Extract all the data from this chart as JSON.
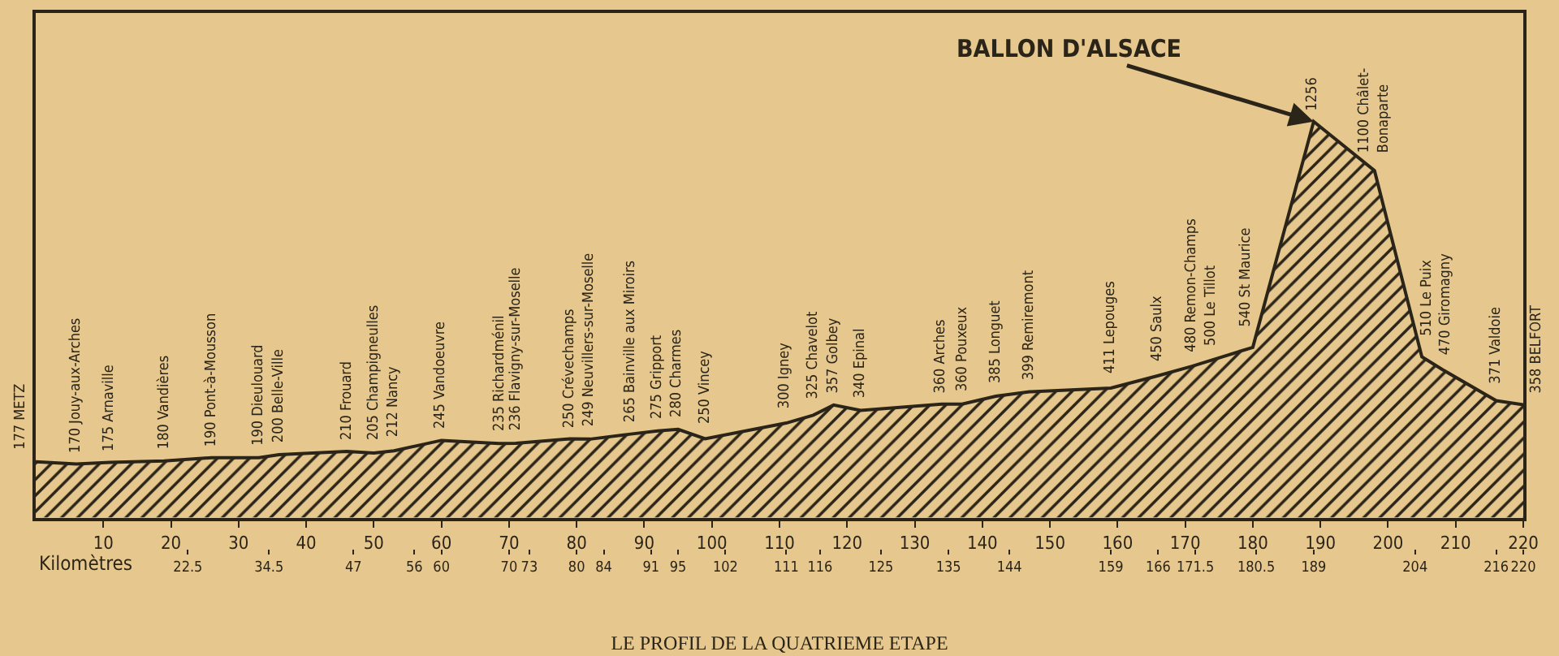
{
  "chart_data": {
    "type": "area",
    "title": "LE PROFIL DE LA QUATRIEME ETAPE",
    "x2label": "Kilomètres",
    "color": "#2b2418",
    "x": [
      0,
      6,
      11,
      19,
      26,
      33,
      36,
      46,
      50,
      53,
      60,
      68.5,
      71,
      79,
      82,
      88,
      92,
      95,
      99,
      111,
      115,
      118,
      122,
      134,
      137,
      142,
      147,
      159,
      166,
      171,
      174,
      180,
      189,
      198,
      205,
      208,
      216,
      220
    ],
    "values": [
      177,
      170,
      175,
      180,
      190,
      190,
      200,
      210,
      205,
      212,
      245,
      235,
      236,
      250,
      249,
      265,
      275,
      280,
      250,
      300,
      325,
      357,
      340,
      360,
      360,
      385,
      399,
      411,
      450,
      480,
      500,
      540,
      1256,
      1100,
      510,
      470,
      371,
      358
    ],
    "value_labels": [
      "177 METZ",
      "170 Jouy-aux-Arches",
      "175 Arnaville",
      "180 Vandières",
      "190 Pont-à-Mousson",
      "190 Dieulouard",
      "200 Belle-Ville",
      "210 Frouard",
      "205 Champigneulles",
      "212 Nancy",
      "245 Vandoeuvre",
      "235 Richardménil",
      "236 Flavigny-sur-Moselle",
      "250 Crévechamps",
      "249 Neuvillers-sur-Moselle",
      "265 Bainville aux Miroirs",
      "275 Gripport",
      "280 Charmes",
      "250 Vincey",
      "300 Igney",
      "325 Chavelot",
      "357 Golbey",
      "340 Epinal",
      "360 Arches",
      "360 Pouxeux",
      "385 Longuet",
      "399 Remiremont",
      "411 Lepouges",
      "450 Saulx",
      "480 Remon-Champs",
      "500 Le Tillot",
      "540 St Maurice",
      "1256",
      "1100 Châlet-\nBonaparte",
      "510 Le Puix",
      "470 Giromagny",
      "371 Valdoie",
      "358 BELFORT"
    ],
    "xlim": [
      0,
      220
    ],
    "xticks": [
      10,
      20,
      30,
      40,
      50,
      60,
      70,
      80,
      90,
      100,
      110,
      120,
      130,
      140,
      150,
      160,
      170,
      180,
      190,
      200,
      210,
      220
    ],
    "x2lim": [
      0,
      220
    ],
    "x2ticks": [
      {
        "value": 22.5,
        "label": "22.5"
      },
      {
        "value": 34.5,
        "label": "34.5"
      },
      47,
      56,
      60,
      70,
      73,
      80,
      84,
      91,
      95,
      102,
      111,
      116,
      125,
      135,
      144,
      159,
      166,
      {
        "value": 171.5,
        "label": "171.5"
      },
      {
        "value": 180.5,
        "label": "180.5"
      },
      189,
      204,
      216,
      220
    ],
    "ylim": [
      0,
      1600
    ],
    "tick_labels": "x",
    "annotations": [
      {
        "text": "BALLON D'ALSACE",
        "x": 189,
        "y": 1256
      }
    ]
  }
}
